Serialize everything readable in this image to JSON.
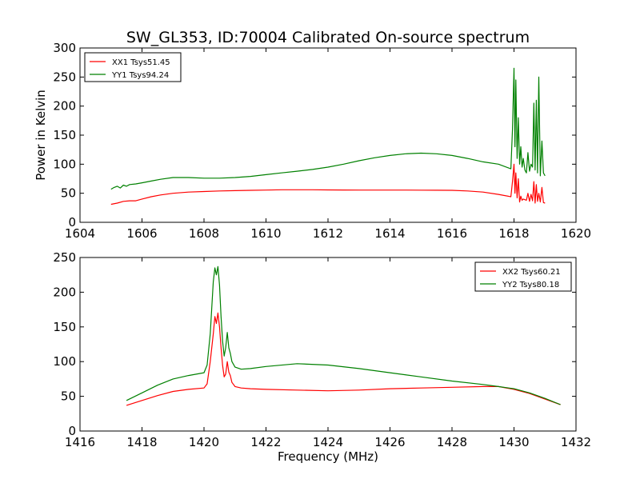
{
  "figure": {
    "title": "SW_GL353, ID:70004 Calibrated On-source spectrum",
    "background": "#ffffff"
  },
  "colors": {
    "xx": "#ff0000",
    "yy": "#008000"
  },
  "chart_data": [
    {
      "type": "line",
      "title": "SW_GL353, ID:70004 Calibrated On-source spectrum",
      "xlabel": "",
      "ylabel": "Power in Kelvin",
      "xlim": [
        1604,
        1620
      ],
      "ylim": [
        0,
        300
      ],
      "xticks": [
        "1604",
        "1606",
        "1608",
        "1610",
        "1612",
        "1614",
        "1616",
        "1618",
        "1620"
      ],
      "yticks": [
        "0",
        "50",
        "100",
        "150",
        "200",
        "250",
        "300"
      ],
      "grid": false,
      "legend_position": "top-left",
      "series": [
        {
          "name": "XX1 Tsys51.45",
          "color": "#ff0000",
          "x": [
            1605.0,
            1605.2,
            1605.4,
            1605.6,
            1605.8,
            1606.0,
            1606.3,
            1606.6,
            1607.0,
            1607.5,
            1608.0,
            1608.5,
            1609.0,
            1609.5,
            1610.0,
            1610.5,
            1611.0,
            1611.5,
            1612.0,
            1612.5,
            1613.0,
            1613.5,
            1614.0,
            1614.5,
            1615.0,
            1615.5,
            1616.0,
            1616.5,
            1617.0,
            1617.5,
            1617.9,
            1617.95,
            1618.0,
            1618.03,
            1618.06,
            1618.1,
            1618.14,
            1618.18,
            1618.22,
            1618.26,
            1618.3,
            1618.35,
            1618.4,
            1618.45,
            1618.5,
            1618.55,
            1618.6,
            1618.64,
            1618.68,
            1618.72,
            1618.76,
            1618.8,
            1618.85,
            1618.9,
            1618.95,
            1619.0
          ],
          "values": [
            31,
            33,
            36,
            37,
            37,
            40,
            44,
            47,
            50,
            52,
            53,
            54,
            54.5,
            55,
            55.5,
            56,
            56,
            56,
            55.8,
            55.6,
            55.5,
            55.5,
            55.5,
            55.4,
            55.3,
            55.2,
            55,
            54,
            52,
            48,
            44,
            70,
            100,
            50,
            85,
            42,
            75,
            35,
            45,
            38,
            40,
            39,
            38,
            50,
            36,
            48,
            37,
            70,
            33,
            65,
            36,
            50,
            35,
            60,
            34,
            33
          ]
        },
        {
          "name": "YY1 Tsys94.24",
          "color": "#008000",
          "x": [
            1605.0,
            1605.1,
            1605.2,
            1605.3,
            1605.4,
            1605.5,
            1605.6,
            1605.8,
            1606.0,
            1606.3,
            1606.6,
            1607.0,
            1607.5,
            1608.0,
            1608.5,
            1609.0,
            1609.5,
            1610.0,
            1610.5,
            1611.0,
            1611.5,
            1612.0,
            1612.5,
            1613.0,
            1613.5,
            1614.0,
            1614.5,
            1615.0,
            1615.5,
            1616.0,
            1616.5,
            1617.0,
            1617.5,
            1617.9,
            1617.95,
            1618.0,
            1618.03,
            1618.06,
            1618.1,
            1618.14,
            1618.18,
            1618.22,
            1618.26,
            1618.3,
            1618.35,
            1618.4,
            1618.45,
            1618.5,
            1618.55,
            1618.6,
            1618.64,
            1618.68,
            1618.72,
            1618.76,
            1618.8,
            1618.85,
            1618.9,
            1618.95,
            1619.0
          ],
          "values": [
            57,
            60,
            62,
            59,
            64,
            62,
            65,
            66,
            68,
            71,
            74,
            77,
            77,
            76,
            76,
            77,
            79,
            82,
            85,
            88,
            91,
            95,
            100,
            106,
            111,
            115,
            118,
            119,
            118,
            115,
            110,
            104,
            100,
            92,
            160,
            265,
            130,
            245,
            110,
            180,
            100,
            130,
            95,
            110,
            90,
            85,
            120,
            88,
            100,
            95,
            205,
            90,
            210,
            85,
            250,
            80,
            140,
            85,
            80
          ]
        }
      ]
    },
    {
      "type": "line",
      "title": "",
      "xlabel": "Frequency (MHz)",
      "ylabel": "",
      "xlim": [
        1416,
        1432
      ],
      "ylim": [
        0,
        250
      ],
      "xticks": [
        "1416",
        "1418",
        "1420",
        "1422",
        "1424",
        "1426",
        "1428",
        "1430",
        "1432"
      ],
      "yticks": [
        "0",
        "50",
        "100",
        "150",
        "200",
        "250"
      ],
      "grid": false,
      "legend_position": "top-right",
      "series": [
        {
          "name": "XX2 Tsys60.21",
          "color": "#ff0000",
          "x": [
            1417.5,
            1418.0,
            1418.5,
            1419.0,
            1419.5,
            1420.0,
            1420.1,
            1420.2,
            1420.3,
            1420.35,
            1420.4,
            1420.45,
            1420.5,
            1420.55,
            1420.6,
            1420.65,
            1420.7,
            1420.75,
            1420.8,
            1420.85,
            1420.9,
            1421.0,
            1421.2,
            1421.5,
            1422.0,
            1423.0,
            1424.0,
            1425.0,
            1426.0,
            1427.0,
            1428.0,
            1429.0,
            1429.5,
            1430.0,
            1430.5,
            1431.0,
            1431.5
          ],
          "values": [
            37,
            44,
            51,
            57,
            60,
            62,
            68,
            100,
            140,
            165,
            155,
            170,
            150,
            120,
            95,
            78,
            82,
            100,
            85,
            80,
            70,
            64,
            62,
            61,
            60,
            59,
            58,
            59,
            61,
            62,
            63,
            64,
            64,
            60,
            54,
            46,
            38
          ]
        },
        {
          "name": "YY2 Tsys80.18",
          "color": "#008000",
          "x": [
            1417.5,
            1418.0,
            1418.5,
            1419.0,
            1419.5,
            1420.0,
            1420.1,
            1420.2,
            1420.3,
            1420.35,
            1420.4,
            1420.45,
            1420.5,
            1420.55,
            1420.6,
            1420.65,
            1420.7,
            1420.75,
            1420.8,
            1420.85,
            1420.9,
            1421.0,
            1421.2,
            1421.5,
            1422.0,
            1423.0,
            1424.0,
            1425.0,
            1426.0,
            1427.0,
            1428.0,
            1429.0,
            1429.5,
            1430.0,
            1430.5,
            1431.0,
            1431.5
          ],
          "values": [
            44,
            55,
            66,
            75,
            80,
            84,
            95,
            140,
            215,
            235,
            225,
            237,
            210,
            165,
            130,
            108,
            120,
            142,
            120,
            112,
            100,
            92,
            89,
            90,
            93,
            97,
            95,
            90,
            84,
            78,
            72,
            67,
            64,
            61,
            55,
            47,
            38
          ]
        }
      ]
    }
  ]
}
